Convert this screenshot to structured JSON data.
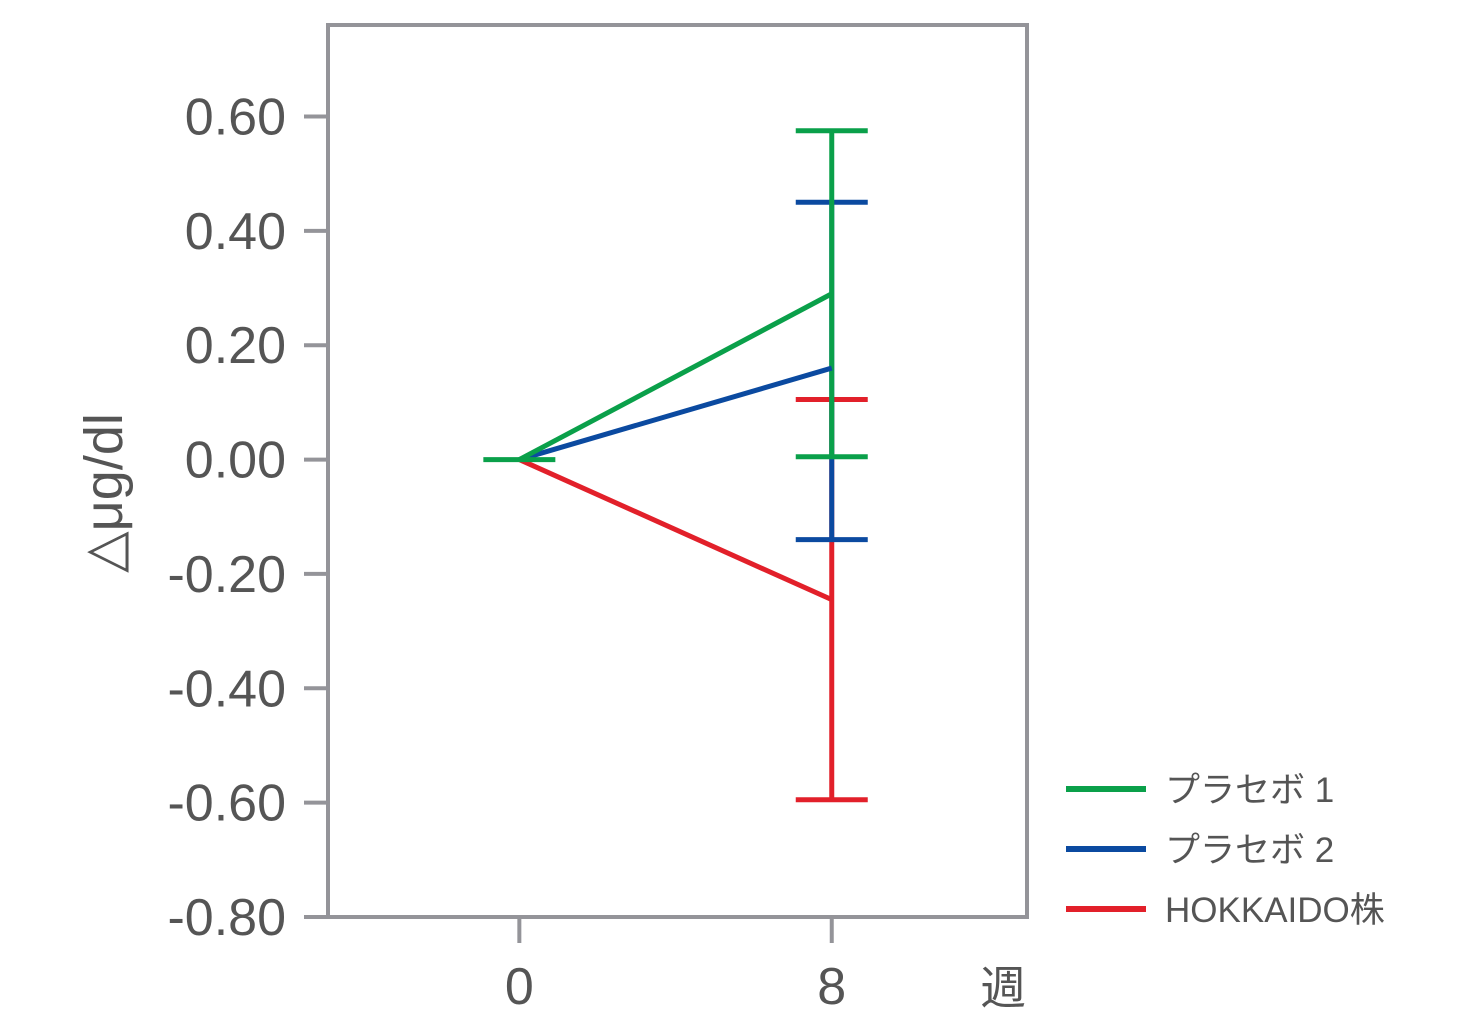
{
  "chart_data": {
    "type": "line",
    "title": "",
    "xlabel": "週",
    "ylabel": "△μg/dl",
    "x_ticks": [
      "0",
      "8"
    ],
    "x": [
      0,
      8
    ],
    "xlim": [
      -4.9,
      13
    ],
    "ylim": [
      -0.8,
      0.76
    ],
    "y_ticks": [
      0.6,
      0.4,
      0.2,
      0.0,
      -0.2,
      -0.4,
      -0.6,
      -0.8
    ],
    "y_tick_labels": [
      "0.60",
      "0.40",
      "0.20",
      "0.00",
      "-0.20",
      "-0.40",
      "-0.60",
      "-0.80"
    ],
    "grid": false,
    "legend_position": "bottom-right",
    "series": [
      {
        "name": "プラセボ 1",
        "color": "#0aa04a",
        "values": [
          0.0,
          0.29
        ],
        "error_bars_at_8": {
          "low": 0.005,
          "high": 0.575
        }
      },
      {
        "name": "プラセボ 2",
        "color": "#0b4aa0",
        "values": [
          0.0,
          0.16
        ],
        "error_bars_at_8": {
          "low": -0.14,
          "high": 0.45
        }
      },
      {
        "name": "HOKKAIDO株",
        "color": "#e2202a",
        "values": [
          0.0,
          -0.245
        ],
        "error_bars_at_8": {
          "low": -0.595,
          "high": 0.105
        }
      }
    ]
  }
}
